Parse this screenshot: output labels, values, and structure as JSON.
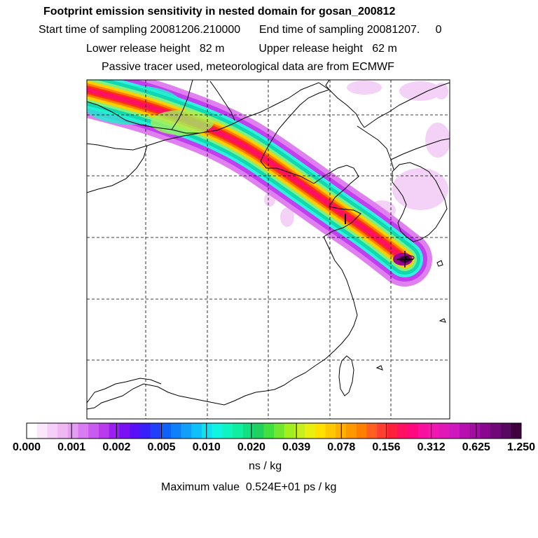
{
  "header": {
    "title": "Footprint emission sensitivity in nested domain for gosan_200812",
    "sampling_line": "Start time of sampling 20081206.210000      End time of sampling 20081207.     0",
    "release_line": "Lower release height   82 m           Upper release height   62 m",
    "tracer_line": "Passive tracer used, meteorological data are from ECMWF"
  },
  "colorbar": {
    "labels": [
      "0.000",
      "0.001",
      "0.002",
      "0.005",
      "0.010",
      "0.020",
      "0.039",
      "0.078",
      "0.156",
      "0.312",
      "0.625",
      "1.250"
    ],
    "colors": [
      "#ffffff",
      "#fbe7fb",
      "#f5cff7",
      "#efb8f5",
      "#e59cf4",
      "#d97bf2",
      "#c95bf0",
      "#b83cee",
      "#9b1ff2",
      "#7a10f4",
      "#5a10f6",
      "#3a20f8",
      "#2040fa",
      "#1060fa",
      "#1080fa",
      "#10a0fa",
      "#10c0fa",
      "#10e0f0",
      "#10f5e0",
      "#10f5c0",
      "#10eea0",
      "#10e080",
      "#20d060",
      "#40e040",
      "#70e830",
      "#a0f020",
      "#c8f020",
      "#e8f010",
      "#ffe000",
      "#ffc800",
      "#ffb000",
      "#ff9800",
      "#ff8000",
      "#ff6020",
      "#ff4030",
      "#ff2040",
      "#ff1060",
      "#ff0880",
      "#f810a0",
      "#f018b0",
      "#e018b8",
      "#d018c0",
      "#b810b0",
      "#a010a0",
      "#880890",
      "#700878",
      "#580860",
      "#400040"
    ],
    "units": "ns / kg"
  },
  "footer": {
    "max_value": "Maximum value  0.524E+01 ps / kg"
  },
  "map": {
    "plume_colors": [
      "#e080f0",
      "#c040f0",
      "#30f0e0",
      "#10d8b0",
      "#80f080",
      "#ffd000",
      "#ff8000",
      "#ff3010",
      "#ff1060",
      "#a00090",
      "#400040"
    ],
    "receptor_marker": "plus-icon"
  }
}
